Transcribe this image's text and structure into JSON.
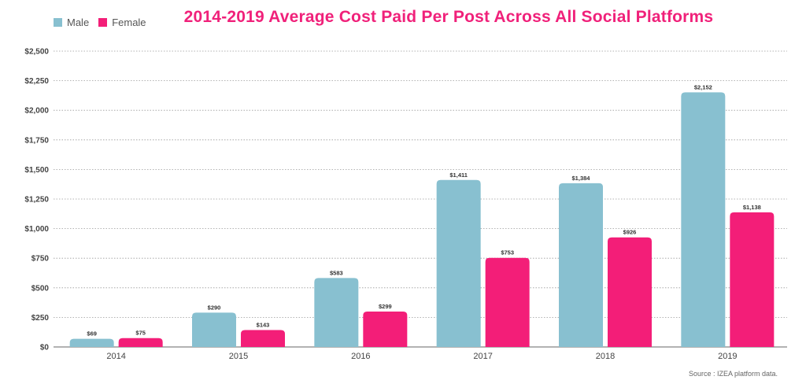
{
  "chart_data": {
    "type": "bar",
    "title": "2014-2019 Average Cost Paid Per Post Across All Social Platforms",
    "categories": [
      "2014",
      "2015",
      "2016",
      "2017",
      "2018",
      "2019"
    ],
    "series": [
      {
        "name": "Male",
        "color": "#88c0d0",
        "values": [
          69,
          290,
          583,
          1411,
          1384,
          2152
        ],
        "labels": [
          "$69",
          "$290",
          "$583",
          "$1,411",
          "$1,384",
          "$2,152"
        ]
      },
      {
        "name": "Female",
        "color": "#f31e78",
        "values": [
          75,
          143,
          299,
          753,
          926,
          1138
        ],
        "labels": [
          "$75",
          "$143",
          "$299",
          "$753",
          "$926",
          "$1,138"
        ]
      }
    ],
    "ylim": [
      0,
      2500
    ],
    "yticks": [
      0,
      250,
      500,
      750,
      1000,
      1250,
      1500,
      1750,
      2000,
      2250,
      2500
    ],
    "ytick_labels": [
      "$0",
      "$250",
      "$500",
      "$750",
      "$1,000",
      "$1,250",
      "$1,500",
      "$1,750",
      "$2,000",
      "$2,250",
      "$2,500"
    ],
    "grid": "dotted horizontal",
    "legend_position": "top-left",
    "source_note": "Source : IZEA platform data."
  }
}
